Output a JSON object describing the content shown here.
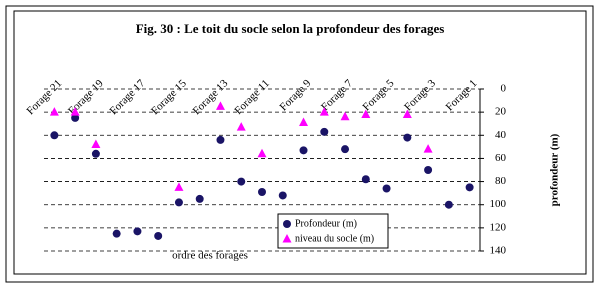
{
  "chart_data": {
    "type": "scatter",
    "title": "Fig. 30 : Le toit du socle selon la profondeur des forages",
    "x_label": "ordre des forages",
    "y_label": "profondeur (m)",
    "categories": [
      "Forage 21",
      null,
      "Forage 19",
      null,
      "Forage 17",
      null,
      "Forage 15",
      null,
      "Forage 13",
      null,
      "Forage 11",
      null,
      "Forage 9",
      null,
      "Forage 7",
      null,
      "Forage 5",
      null,
      "Forage 3",
      null,
      "Forage 1"
    ],
    "series": [
      {
        "name": "Profondeur (m)",
        "color": "#1a1466",
        "marker": "circle",
        "values": [
          40,
          25,
          56,
          125,
          123,
          127,
          98,
          95,
          44,
          80,
          89,
          92,
          53,
          37,
          52,
          78,
          86,
          42,
          70,
          100,
          85
        ]
      },
      {
        "name": "niveau du socle (m)",
        "color": "#ff00ff",
        "marker": "triangle",
        "values": [
          20,
          20,
          48,
          null,
          null,
          null,
          85,
          null,
          15,
          33,
          56,
          null,
          29,
          20,
          24,
          22,
          null,
          22,
          52,
          null,
          null
        ]
      }
    ],
    "ylim": [
      0,
      140
    ],
    "yticks": [
      0,
      20,
      40,
      60,
      80,
      100,
      120,
      140
    ],
    "y_inverted": true,
    "grid": true
  }
}
